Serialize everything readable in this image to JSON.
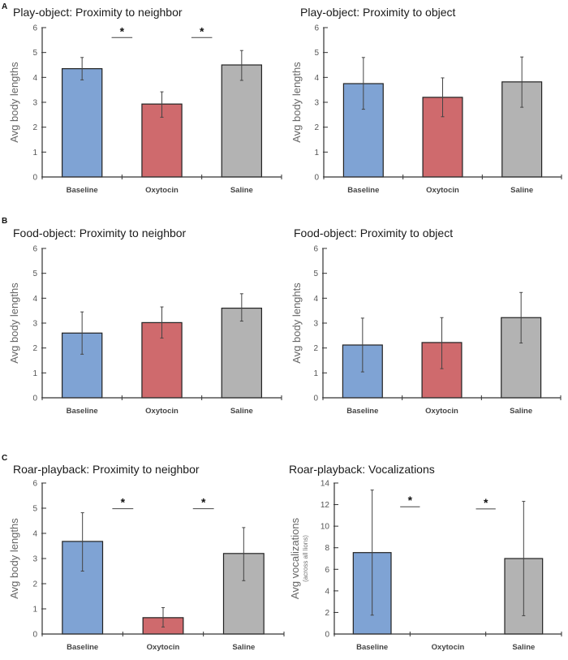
{
  "figure": {
    "panel_labels": [
      "A",
      "B",
      "C"
    ],
    "colors": {
      "baseline": "#7fa3d4",
      "oxytocin": "#cf6a6d",
      "saline": "#b3b3b3",
      "axis": "#333333",
      "bar_edge": "#222222"
    }
  },
  "chart_data": [
    {
      "id": "play-neighbor",
      "panel": "A",
      "type": "bar",
      "title": "Play-object: Proximity to neighbor",
      "ylabel": "Avg body lengths",
      "ylabel_sub": "",
      "xlabel": "",
      "categories": [
        "Baseline",
        "Oxytocin",
        "Saline"
      ],
      "values": [
        4.35,
        2.93,
        4.5
      ],
      "error_low": [
        3.9,
        2.4,
        3.88
      ],
      "error_high": [
        4.8,
        3.42,
        5.08
      ],
      "ylim": [
        0,
        6
      ],
      "yticks": [
        0,
        1,
        2,
        3,
        4,
        5,
        6
      ],
      "significance": [
        {
          "between": [
            "Baseline",
            "Oxytocin"
          ],
          "label": "*",
          "y": 5.6
        },
        {
          "between": [
            "Oxytocin",
            "Saline"
          ],
          "label": "*",
          "y": 5.6
        }
      ],
      "grid": false,
      "legend": "none"
    },
    {
      "id": "play-object",
      "panel": "",
      "type": "bar",
      "title": "Play-object: Proximity to object",
      "ylabel": "Avg body lengths",
      "ylabel_sub": "",
      "xlabel": "",
      "categories": [
        "Baseline",
        "Oxytocin",
        "Saline"
      ],
      "values": [
        3.75,
        3.2,
        3.82
      ],
      "error_low": [
        2.72,
        2.42,
        2.8
      ],
      "error_high": [
        4.8,
        3.98,
        4.82
      ],
      "ylim": [
        0,
        6
      ],
      "yticks": [
        0,
        1,
        2,
        3,
        4,
        5,
        6
      ],
      "significance": [],
      "grid": false,
      "legend": "none"
    },
    {
      "id": "food-neighbor",
      "panel": "B",
      "type": "bar",
      "title": "Food-object: Proximity to neighbor",
      "ylabel": "Avg body lengths",
      "ylabel_sub": "",
      "xlabel": "",
      "categories": [
        "Baseline",
        "Oxytocin",
        "Saline"
      ],
      "values": [
        2.6,
        3.02,
        3.6
      ],
      "error_low": [
        1.75,
        2.4,
        3.08
      ],
      "error_high": [
        3.45,
        3.65,
        4.18
      ],
      "ylim": [
        0,
        6
      ],
      "yticks": [
        0,
        1,
        2,
        3,
        4,
        5,
        6
      ],
      "significance": [],
      "grid": false,
      "legend": "none"
    },
    {
      "id": "food-object",
      "panel": "",
      "type": "bar",
      "title": "Food-object: Proximity to object",
      "ylabel": "Avg body lenghts",
      "ylabel_sub": "",
      "xlabel": "",
      "categories": [
        "Baseline",
        "Oxytocin",
        "Saline"
      ],
      "values": [
        2.12,
        2.22,
        3.22
      ],
      "error_low": [
        1.04,
        1.17,
        2.2
      ],
      "error_high": [
        3.2,
        3.22,
        4.23
      ],
      "ylim": [
        0,
        6
      ],
      "yticks": [
        0,
        1,
        2,
        3,
        4,
        5,
        6
      ],
      "significance": [],
      "grid": false,
      "legend": "none"
    },
    {
      "id": "roar-neighbor",
      "panel": "C",
      "type": "bar",
      "title": "Roar-playback: Proximity to neighbor",
      "ylabel": "Avg body lengths",
      "ylabel_sub": "",
      "xlabel": "",
      "categories": [
        "Baseline",
        "Oxytocin",
        "Saline"
      ],
      "values": [
        3.68,
        0.65,
        3.2
      ],
      "error_low": [
        2.5,
        0.28,
        2.12
      ],
      "error_high": [
        4.82,
        1.05,
        4.23
      ],
      "ylim": [
        0,
        6
      ],
      "yticks": [
        0,
        1,
        2,
        3,
        4,
        5,
        6
      ],
      "significance": [
        {
          "between": [
            "Baseline",
            "Oxytocin"
          ],
          "label": "*",
          "y": 4.98
        },
        {
          "between": [
            "Oxytocin",
            "Saline"
          ],
          "label": "*",
          "y": 4.98
        }
      ],
      "grid": false,
      "legend": "none"
    },
    {
      "id": "roar-vocal",
      "panel": "",
      "type": "bar",
      "title": "Roar-playback: Vocalizations",
      "ylabel": "Avg vocalizations",
      "ylabel_sub": "(across all lions)",
      "xlabel": "",
      "categories": [
        "Baseline",
        "Oxytocin",
        "Saline"
      ],
      "values": [
        7.55,
        0,
        7.0
      ],
      "error_low": [
        1.75,
        0,
        1.7
      ],
      "error_high": [
        13.35,
        0,
        12.3
      ],
      "ylim": [
        0,
        14
      ],
      "yticks": [
        0,
        2,
        4,
        6,
        8,
        10,
        12,
        14
      ],
      "significance": [
        {
          "between": [
            "Baseline",
            "Oxytocin"
          ],
          "label": "*",
          "y": 11.8
        },
        {
          "between": [
            "Oxytocin",
            "Saline"
          ],
          "label": "*",
          "y": 11.6
        }
      ],
      "grid": false,
      "legend": "none"
    }
  ]
}
